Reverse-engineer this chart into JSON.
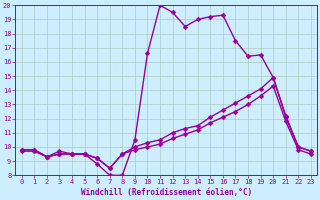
{
  "xlabel": "Windchill (Refroidissement éolien,°C)",
  "xlim": [
    -0.5,
    23.5
  ],
  "ylim": [
    8,
    20
  ],
  "xticks": [
    0,
    1,
    2,
    3,
    4,
    5,
    6,
    7,
    8,
    9,
    10,
    11,
    12,
    13,
    14,
    15,
    16,
    17,
    18,
    19,
    20,
    21,
    22,
    23
  ],
  "yticks": [
    8,
    9,
    10,
    11,
    12,
    13,
    14,
    15,
    16,
    17,
    18,
    19,
    20
  ],
  "bg_color": "#cceeff",
  "grid_color": "#aaccbb",
  "line_color": "#990099",
  "line1_y": [
    9.7,
    9.7,
    9.3,
    9.7,
    9.5,
    9.5,
    8.8,
    8.0,
    8.0,
    10.5,
    16.6,
    20.0,
    19.5,
    18.5,
    19.0,
    19.2,
    19.3,
    17.5,
    16.4,
    16.5,
    14.9,
    12.2,
    10.0,
    9.7
  ],
  "line2_y": [
    9.8,
    9.8,
    9.3,
    9.5,
    9.5,
    9.5,
    9.2,
    8.5,
    9.5,
    10.0,
    10.3,
    10.5,
    11.0,
    11.3,
    11.5,
    12.1,
    12.6,
    13.1,
    13.6,
    14.1,
    14.9,
    12.1,
    10.0,
    9.7
  ],
  "line3_y": [
    9.8,
    9.8,
    9.3,
    9.5,
    9.5,
    9.5,
    9.2,
    8.5,
    9.5,
    9.8,
    10.0,
    10.2,
    10.6,
    10.9,
    11.2,
    11.7,
    12.1,
    12.5,
    13.0,
    13.6,
    14.3,
    11.8,
    9.8,
    9.5
  ],
  "marker": "D",
  "marker_size": 2.5,
  "line_width": 1.0,
  "tick_fontsize": 5.0,
  "xlabel_fontsize": 5.5
}
